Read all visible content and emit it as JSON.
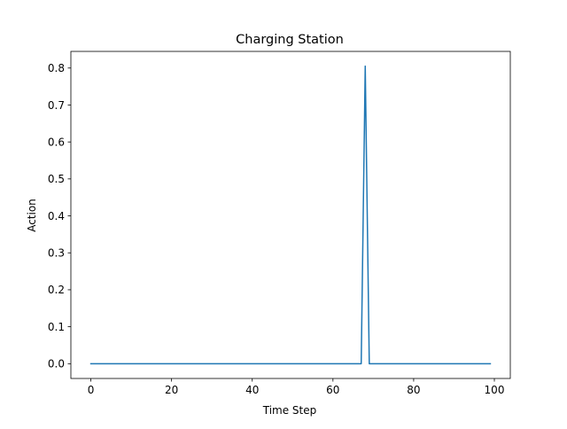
{
  "chart_data": {
    "type": "line",
    "title": "Charging Station",
    "xlabel": "Time Step",
    "ylabel": "Action",
    "xlim": [
      -4.95,
      103.95
    ],
    "ylim": [
      -0.04,
      0.845
    ],
    "xticks": [
      0,
      20,
      40,
      60,
      80,
      100
    ],
    "yticks": [
      0.0,
      0.1,
      0.2,
      0.3,
      0.4,
      0.5,
      0.6,
      0.7,
      0.8
    ],
    "xtick_labels": [
      "0",
      "20",
      "40",
      "60",
      "80",
      "100"
    ],
    "ytick_labels": [
      "0.0",
      "0.1",
      "0.2",
      "0.3",
      "0.4",
      "0.5",
      "0.6",
      "0.7",
      "0.8"
    ],
    "grid": false,
    "series": [
      {
        "color": "#1f77b4",
        "x": [
          0,
          67,
          68,
          69,
          99
        ],
        "y": [
          0.0,
          0.0,
          0.805,
          0.0,
          0.0
        ]
      }
    ]
  }
}
